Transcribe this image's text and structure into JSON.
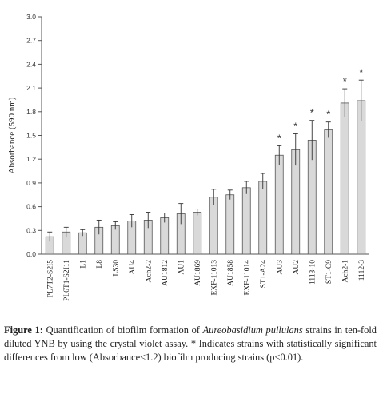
{
  "chart_data": {
    "type": "bar",
    "title": "",
    "xlabel": "",
    "ylabel": "Absorbance (590 nm)",
    "ylim": [
      0,
      3.0
    ],
    "yticks": [
      "0.0",
      "0.3",
      "0.6",
      "0.9",
      "1.2",
      "1.5",
      "1.8",
      "2.1",
      "2.4",
      "2.7",
      "3.0"
    ],
    "grid": false,
    "bar_color": "#d9d9d9",
    "categories": [
      "PL7T2-S2I5",
      "PL6T1-S2I11",
      "L1",
      "L8",
      "LS30",
      "AU4",
      "Ach2-2",
      "AU1812",
      "AU1",
      "AU1869",
      "EXF-11013",
      "AU1858",
      "EXF-11014",
      "ST1-A24",
      "AU3",
      "AU2",
      "1113-10",
      "ST1-C9",
      "Ach2-1",
      "1112-3"
    ],
    "values": [
      0.22,
      0.28,
      0.27,
      0.34,
      0.36,
      0.42,
      0.43,
      0.46,
      0.51,
      0.53,
      0.72,
      0.75,
      0.84,
      0.92,
      1.25,
      1.32,
      1.44,
      1.57,
      1.91,
      1.94
    ],
    "errors": [
      0.06,
      0.06,
      0.04,
      0.09,
      0.05,
      0.08,
      0.1,
      0.06,
      0.13,
      0.04,
      0.1,
      0.06,
      0.08,
      0.1,
      0.12,
      0.2,
      0.25,
      0.1,
      0.18,
      0.26
    ],
    "significant": [
      false,
      false,
      false,
      false,
      false,
      false,
      false,
      false,
      false,
      false,
      false,
      false,
      false,
      false,
      true,
      true,
      true,
      true,
      true,
      true
    ],
    "significance_marker": "*"
  },
  "caption": {
    "label": "Figure 1:",
    "text_1": " Quantification of biofilm formation of ",
    "species": "Aureobasidium pullulans",
    "text_2": " strains in ten-fold diluted YNB by using the crystal violet assay. * Indicates strains with statistically significant differences from low (Absorbance<1.2) biofilm producing strains (p<0.01)."
  }
}
